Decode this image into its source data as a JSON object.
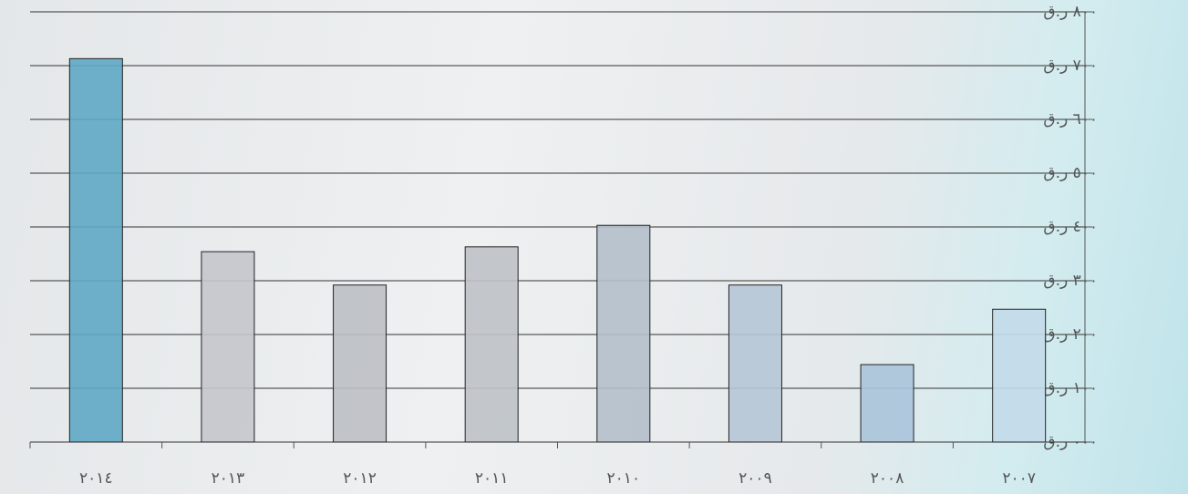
{
  "chart_data": {
    "type": "bar",
    "categories": [
      "٢٠١٤",
      "٢٠١٣",
      "٢٠١٢",
      "٢٠١١",
      "٢٠١٠",
      "٢٠٠٩",
      "٢٠٠٨",
      "٢٠٠٧"
    ],
    "values": [
      713,
      354,
      292,
      363,
      403,
      292,
      144,
      247
    ],
    "colors": [
      "#5fa9c4",
      "#c4c7cc",
      "#bcbfc4",
      "#bec2c8",
      "#b4bfca",
      "#b6c7d6",
      "#aac4da",
      "#c3dce9"
    ],
    "ylim": [
      0,
      800
    ],
    "yticks": [
      {
        "value": 0,
        "label": "٠٠٠ ر.ق"
      },
      {
        "value": 100,
        "label": "١٠٠ ر.ق"
      },
      {
        "value": 200,
        "label": "٢٠٠ ر.ق"
      },
      {
        "value": 300,
        "label": "٣٠٠ ر.ق"
      },
      {
        "value": 400,
        "label": "٤٠٠ ر.ق"
      },
      {
        "value": 500,
        "label": "٥٠٠ ر.ق"
      },
      {
        "value": 600,
        "label": "٦٠٠ ر.ق"
      },
      {
        "value": 700,
        "label": "٧٠٠ ر.ق"
      },
      {
        "value": 800,
        "label": "٨٠٠ ر.ق"
      }
    ],
    "grid": true,
    "y_axis_side": "right"
  }
}
